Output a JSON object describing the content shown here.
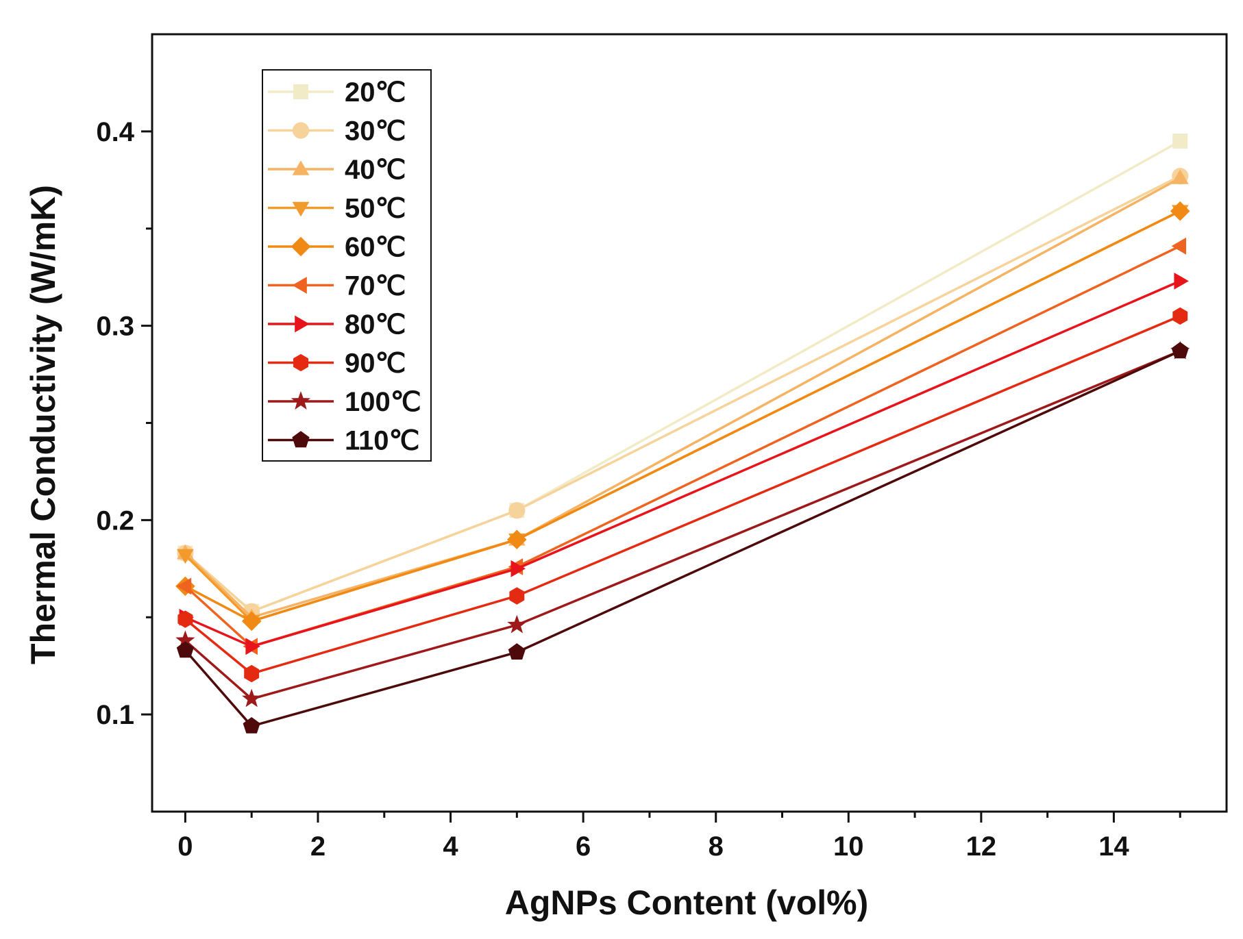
{
  "chart_data": {
    "type": "line",
    "xlabel": "AgNPs Content (vol%)",
    "ylabel": "Thermal Conductivity (W/mK)",
    "xlim": [
      -0.5,
      15.7
    ],
    "ylim": [
      0.05,
      0.45
    ],
    "x_ticks": [
      0,
      2,
      4,
      6,
      8,
      10,
      12,
      14
    ],
    "x_tick_labels": [
      "0",
      "2",
      "4",
      "6",
      "8",
      "10",
      "12",
      "14"
    ],
    "x_minor_ticks": [
      1,
      3,
      5,
      7,
      9,
      11,
      13,
      15
    ],
    "y_ticks": [
      0.1,
      0.2,
      0.3,
      0.4
    ],
    "y_tick_labels": [
      "0.1",
      "0.2",
      "0.3",
      "0.4"
    ],
    "y_minor_ticks": [
      0.15,
      0.25,
      0.35
    ],
    "grid": false,
    "legend_position": "top-left",
    "x": [
      0,
      1,
      5,
      15
    ],
    "series": [
      {
        "name": "20℃",
        "marker": "square",
        "color": "#F2EBC7",
        "values": [
          0.183,
          0.153,
          0.205,
          0.395
        ]
      },
      {
        "name": "30℃",
        "marker": "circle",
        "color": "#F7D39C",
        "values": [
          0.183,
          0.153,
          0.205,
          0.377
        ]
      },
      {
        "name": "40℃",
        "marker": "triangle-up",
        "color": "#F6B364",
        "values": [
          0.183,
          0.15,
          0.19,
          0.376
        ]
      },
      {
        "name": "50℃",
        "marker": "triangle-down",
        "color": "#F29B2C",
        "values": [
          0.182,
          0.148,
          0.19,
          0.359
        ]
      },
      {
        "name": "60℃",
        "marker": "diamond",
        "color": "#F08A14",
        "values": [
          0.166,
          0.148,
          0.19,
          0.359
        ]
      },
      {
        "name": "70℃",
        "marker": "triangle-left",
        "color": "#EE6320",
        "values": [
          0.166,
          0.135,
          0.176,
          0.341
        ]
      },
      {
        "name": "80℃",
        "marker": "triangle-right",
        "color": "#E8141B",
        "values": [
          0.15,
          0.135,
          0.175,
          0.323
        ]
      },
      {
        "name": "90℃",
        "marker": "hexagon",
        "color": "#E52A12",
        "values": [
          0.149,
          0.121,
          0.161,
          0.305
        ]
      },
      {
        "name": "100℃",
        "marker": "star",
        "color": "#9E1A1A",
        "values": [
          0.138,
          0.108,
          0.146,
          0.287
        ]
      },
      {
        "name": "110℃",
        "marker": "pentagon",
        "color": "#4E0A0A",
        "values": [
          0.133,
          0.094,
          0.132,
          0.287
        ]
      }
    ]
  }
}
